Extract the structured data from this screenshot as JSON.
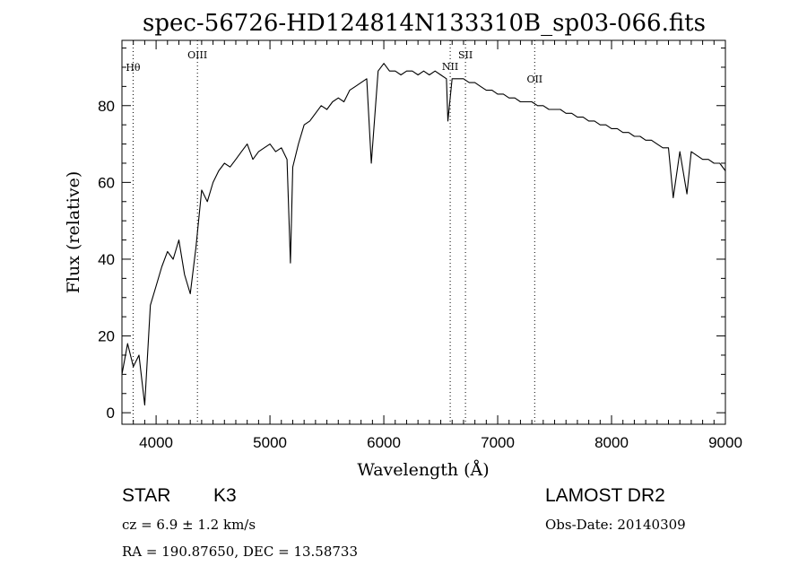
{
  "chart_data": {
    "type": "line",
    "title": "spec-56726-HD124814N133310B_sp03-066.fits",
    "xlabel": "Wavelength (Å)",
    "ylabel": "Flux (relative)",
    "xlim": [
      3700,
      9000
    ],
    "ylim": [
      -3,
      97
    ],
    "xticks": [
      4000,
      5000,
      6000,
      7000,
      8000,
      9000
    ],
    "yticks": [
      0,
      20,
      40,
      60,
      80
    ],
    "grid": false,
    "series": [
      {
        "x": [
          3700,
          3750,
          3800,
          3850,
          3900,
          3950,
          4000,
          4050,
          4100,
          4150,
          4200,
          4250,
          4300,
          4350,
          4400,
          4450,
          4500,
          4550,
          4600,
          4650,
          4700,
          4750,
          4800,
          4850,
          4900,
          4950,
          5000,
          5050,
          5100,
          5150,
          5180,
          5200,
          5250,
          5300,
          5350,
          5400,
          5450,
          5500,
          5550,
          5600,
          5650,
          5700,
          5750,
          5800,
          5850,
          5890,
          5950,
          6000,
          6050,
          6100,
          6150,
          6200,
          6250,
          6300,
          6350,
          6400,
          6450,
          6500,
          6550,
          6563,
          6600,
          6650,
          6700,
          6750,
          6800,
          6850,
          6900,
          6950,
          7000,
          7050,
          7100,
          7150,
          7200,
          7250,
          7300,
          7350,
          7400,
          7450,
          7500,
          7550,
          7600,
          7650,
          7700,
          7750,
          7800,
          7850,
          7900,
          7950,
          8000,
          8050,
          8100,
          8150,
          8200,
          8250,
          8300,
          8350,
          8400,
          8450,
          8500,
          8542,
          8600,
          8662,
          8700,
          8750,
          8800,
          8850,
          8900,
          8950,
          9000
        ],
        "y": [
          10,
          18,
          12,
          15,
          2,
          28,
          33,
          38,
          42,
          40,
          45,
          36,
          31,
          43,
          58,
          55,
          60,
          63,
          65,
          64,
          66,
          68,
          70,
          66,
          68,
          69,
          70,
          68,
          69,
          66,
          39,
          64,
          70,
          75,
          76,
          78,
          80,
          79,
          81,
          82,
          81,
          84,
          85,
          86,
          87,
          65,
          89,
          91,
          89,
          89,
          88,
          89,
          89,
          88,
          89,
          88,
          89,
          88,
          87,
          76,
          87,
          87,
          87,
          86,
          86,
          85,
          84,
          84,
          83,
          83,
          82,
          82,
          81,
          81,
          81,
          80,
          80,
          79,
          79,
          79,
          78,
          78,
          77,
          77,
          76,
          76,
          75,
          75,
          74,
          74,
          73,
          73,
          72,
          72,
          71,
          71,
          70,
          69,
          69,
          56,
          68,
          57,
          68,
          67,
          66,
          66,
          65,
          65,
          63
        ]
      }
    ],
    "lines": [
      {
        "label": "Hθ",
        "x": 3798
      },
      {
        "label": "OIII",
        "x": 4363
      },
      {
        "label": "NII",
        "x": 6583
      },
      {
        "label": "OII",
        "x": 7325
      },
      {
        "label": "SII",
        "x": 6717
      }
    ]
  },
  "footer": {
    "object_type": "STAR",
    "subclass": "K3",
    "survey": "LAMOST DR2",
    "cz": "cz = 6.9 ± 1.2 km/s",
    "obs_date": "Obs-Date: 20140309",
    "coords": "RA = 190.87650, DEC =  13.58733"
  }
}
